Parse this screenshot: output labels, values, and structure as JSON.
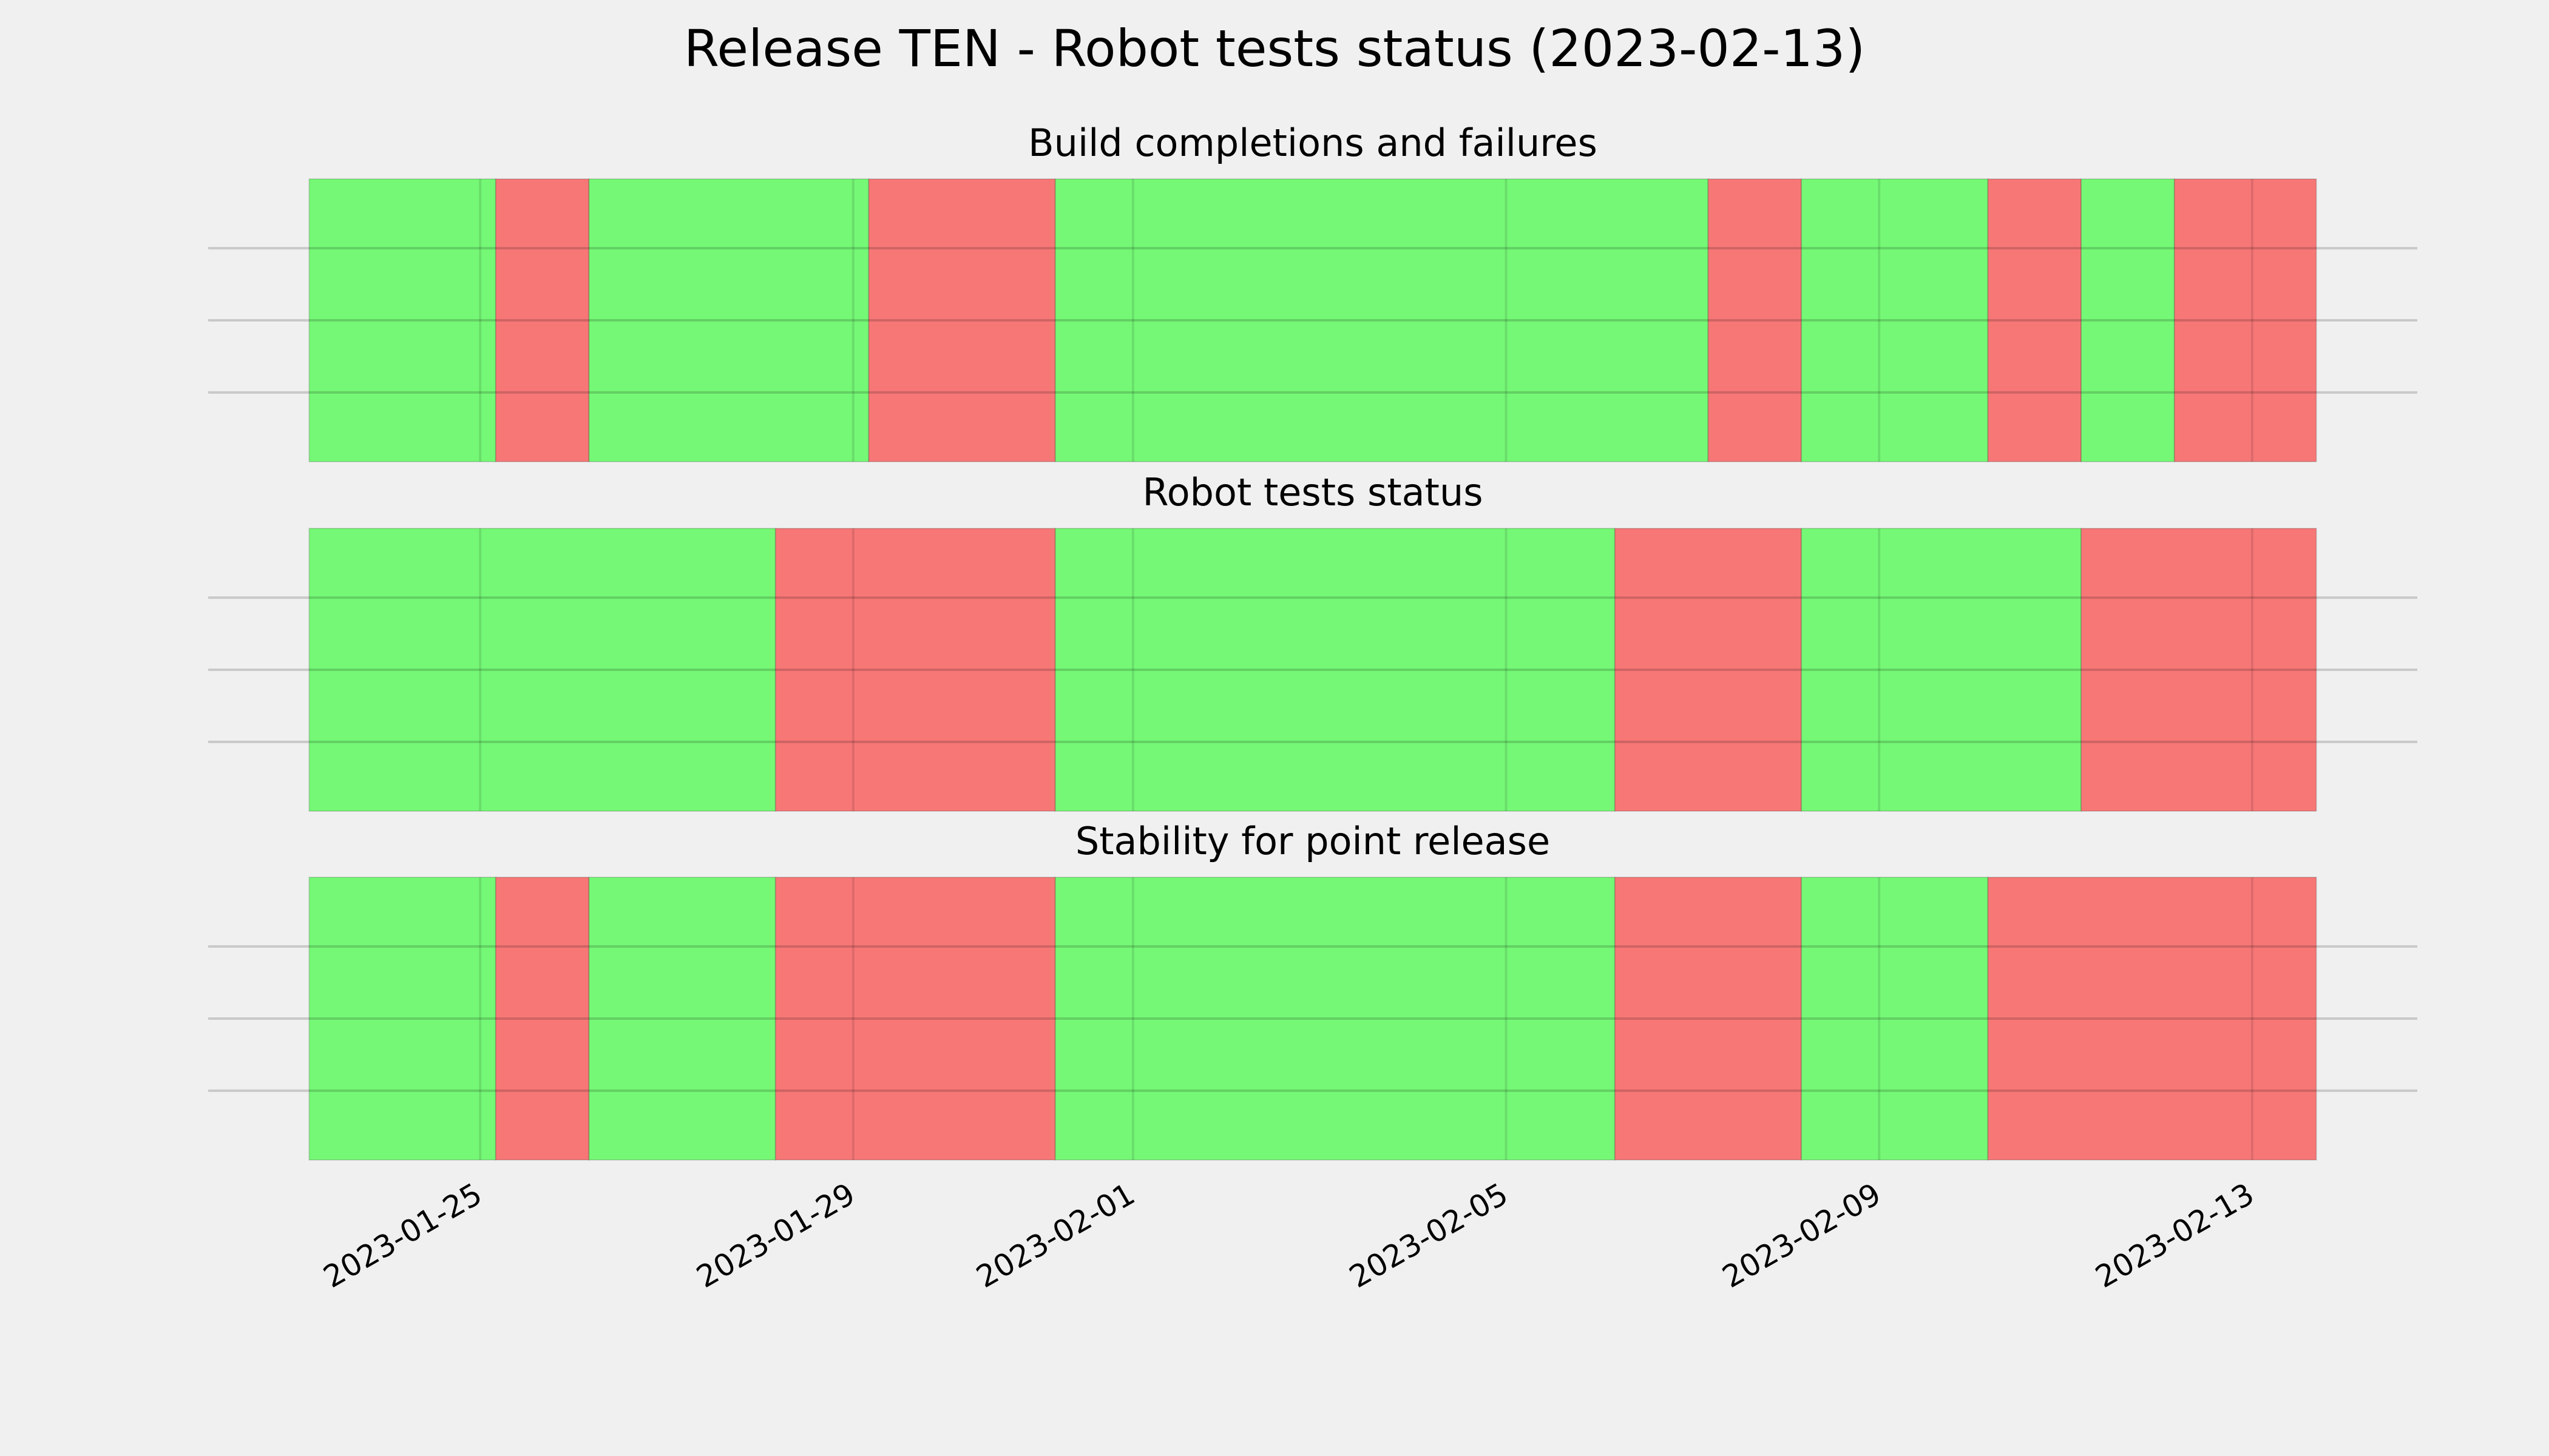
{
  "title": "Release TEN - Robot tests status (2023-02-13)",
  "chart_data": [
    {
      "type": "timeline",
      "title": "Build completions and failures",
      "xlim": [
        "2023-01-22 02:00",
        "2023-02-14 18:30"
      ],
      "xticks": [
        "2023-01-25",
        "2023-01-29",
        "2023-02-01",
        "2023-02-05",
        "2023-02-09",
        "2023-02-13"
      ],
      "grid": true,
      "show_xticks": false,
      "segments": [
        {
          "start": "2023-01-23 04:00",
          "end": "2023-01-25 04:00",
          "color": "#75f876"
        },
        {
          "start": "2023-01-25 04:00",
          "end": "2023-01-26 04:00",
          "color": "#f77777"
        },
        {
          "start": "2023-01-26 04:00",
          "end": "2023-01-29 04:00",
          "color": "#75f876"
        },
        {
          "start": "2023-01-29 04:00",
          "end": "2023-01-31 04:00",
          "color": "#f77777"
        },
        {
          "start": "2023-01-31 04:00",
          "end": "2023-02-07 04:00",
          "color": "#75f876"
        },
        {
          "start": "2023-02-07 04:00",
          "end": "2023-02-08 04:00",
          "color": "#f77777"
        },
        {
          "start": "2023-02-08 04:00",
          "end": "2023-02-10 04:00",
          "color": "#75f876"
        },
        {
          "start": "2023-02-10 04:00",
          "end": "2023-02-11 04:00",
          "color": "#f77777"
        },
        {
          "start": "2023-02-11 04:00",
          "end": "2023-02-12 04:00",
          "color": "#75f876"
        },
        {
          "start": "2023-02-12 04:00",
          "end": "2023-02-13 16:30",
          "color": "#f77777"
        }
      ]
    },
    {
      "type": "timeline",
      "title": "Robot tests status",
      "xlim": [
        "2023-01-22 02:00",
        "2023-02-14 18:30"
      ],
      "xticks": [
        "2023-01-25",
        "2023-01-29",
        "2023-02-01",
        "2023-02-05",
        "2023-02-09",
        "2023-02-13"
      ],
      "grid": true,
      "show_xticks": false,
      "segments": [
        {
          "start": "2023-01-23 04:00",
          "end": "2023-01-28 04:00",
          "color": "#75f876"
        },
        {
          "start": "2023-01-28 04:00",
          "end": "2023-01-31 04:00",
          "color": "#f77777"
        },
        {
          "start": "2023-01-31 04:00",
          "end": "2023-02-06 04:00",
          "color": "#75f876"
        },
        {
          "start": "2023-02-06 04:00",
          "end": "2023-02-08 04:00",
          "color": "#f77777"
        },
        {
          "start": "2023-02-08 04:00",
          "end": "2023-02-11 04:00",
          "color": "#75f876"
        },
        {
          "start": "2023-02-11 04:00",
          "end": "2023-02-13 16:30",
          "color": "#f77777"
        }
      ]
    },
    {
      "type": "timeline",
      "title": "Stability for point release",
      "xlim": [
        "2023-01-22 02:00",
        "2023-02-14 18:30"
      ],
      "xticks": [
        "2023-01-25",
        "2023-01-29",
        "2023-02-01",
        "2023-02-05",
        "2023-02-09",
        "2023-02-13"
      ],
      "grid": true,
      "show_xticks": true,
      "segments": [
        {
          "start": "2023-01-23 04:00",
          "end": "2023-01-25 04:00",
          "color": "#75f876"
        },
        {
          "start": "2023-01-25 04:00",
          "end": "2023-01-26 04:00",
          "color": "#f77777"
        },
        {
          "start": "2023-01-26 04:00",
          "end": "2023-01-28 04:00",
          "color": "#75f876"
        },
        {
          "start": "2023-01-28 04:00",
          "end": "2023-01-31 04:00",
          "color": "#f77777"
        },
        {
          "start": "2023-01-31 04:00",
          "end": "2023-02-06 04:00",
          "color": "#75f876"
        },
        {
          "start": "2023-02-06 04:00",
          "end": "2023-02-08 04:00",
          "color": "#f77777"
        },
        {
          "start": "2023-02-08 04:00",
          "end": "2023-02-10 04:00",
          "color": "#75f876"
        },
        {
          "start": "2023-02-10 04:00",
          "end": "2023-02-13 16:30",
          "color": "#f77777"
        }
      ]
    }
  ]
}
